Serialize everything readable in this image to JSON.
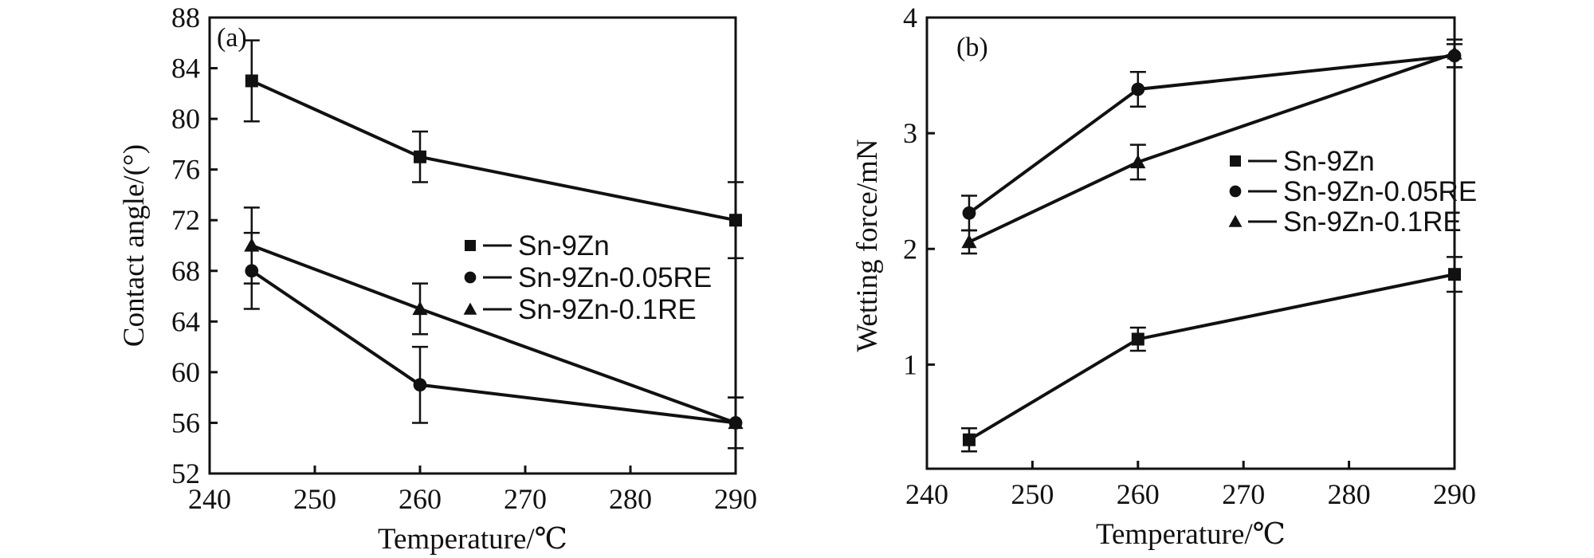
{
  "chart_data": [
    {
      "type": "line",
      "panel_label": "(a)",
      "xlabel": "Temperature/℃",
      "ylabel": "Contact angle/(°)",
      "xlim": [
        240,
        290
      ],
      "ylim": [
        52,
        88
      ],
      "x": [
        244,
        260,
        290
      ],
      "xticks": [
        240,
        250,
        260,
        270,
        280,
        290
      ],
      "yticks": [
        52,
        56,
        60,
        64,
        68,
        72,
        76,
        80,
        84,
        88
      ],
      "legend_position": "center-right",
      "series": [
        {
          "name": "Sn-9Zn",
          "marker": "square",
          "values": [
            83,
            77,
            72
          ],
          "error": [
            3.2,
            2,
            3
          ]
        },
        {
          "name": "Sn-9Zn-0.05RE",
          "marker": "circle",
          "values": [
            68,
            59,
            56
          ],
          "error": [
            3,
            3,
            2
          ]
        },
        {
          "name": "Sn-9Zn-0.1RE",
          "marker": "triangle",
          "values": [
            70,
            65,
            56
          ],
          "error": [
            3,
            2,
            2
          ]
        }
      ]
    },
    {
      "type": "line",
      "panel_label": "(b)",
      "xlabel": "Temperature/℃",
      "ylabel": "Wetting force/mN",
      "xlim": [
        240,
        290
      ],
      "ylim": [
        0.1,
        4
      ],
      "x": [
        244,
        260,
        290
      ],
      "xticks": [
        240,
        250,
        260,
        270,
        280,
        290
      ],
      "yticks": [
        1,
        2,
        3,
        4
      ],
      "legend_position": "center-right",
      "series": [
        {
          "name": "Sn-9Zn",
          "marker": "square",
          "values": [
            0.35,
            1.22,
            1.78
          ],
          "error": [
            0.1,
            0.1,
            0.15
          ]
        },
        {
          "name": "Sn-9Zn-0.05RE",
          "marker": "circle",
          "values": [
            2.31,
            3.38,
            3.67
          ],
          "error": [
            0.15,
            0.15,
            0.1
          ]
        },
        {
          "name": "Sn-9Zn-0.1RE",
          "marker": "triangle",
          "values": [
            2.06,
            2.75,
            3.69
          ],
          "error": [
            0.1,
            0.15,
            0.12
          ]
        }
      ]
    }
  ]
}
